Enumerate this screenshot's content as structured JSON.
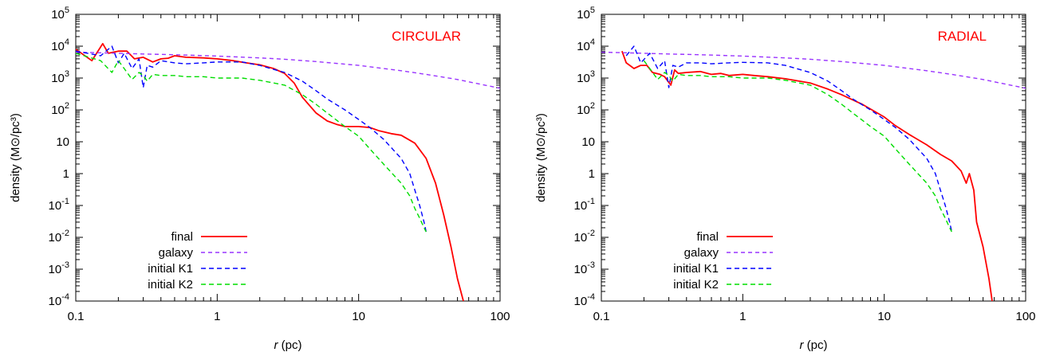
{
  "chart_data": [
    {
      "type": "line",
      "annotation": "CIRCULAR",
      "annotation_color": "#ff0000",
      "xlabel_var": "r",
      "xlabel_unit": " (pc)",
      "ylabel": "density (M⊙/pc³)",
      "xscale": "log",
      "yscale": "log",
      "xlim": [
        0.1,
        100
      ],
      "ylim": [
        0.0001,
        100000
      ],
      "xticks": [
        {
          "v": 0.1,
          "label": "0.1"
        },
        {
          "v": 1,
          "label": "1"
        },
        {
          "v": 10,
          "label": "10"
        },
        {
          "v": 100,
          "label": "100"
        }
      ],
      "yticks": [
        {
          "v": 0.0001,
          "base": "10",
          "exp": "-4"
        },
        {
          "v": 0.001,
          "base": "10",
          "exp": "-3"
        },
        {
          "v": 0.01,
          "base": "10",
          "exp": "-2"
        },
        {
          "v": 0.1,
          "base": "10",
          "exp": "-1"
        },
        {
          "v": 1,
          "base": "1",
          "exp": ""
        },
        {
          "v": 10,
          "base": "10",
          "exp": ""
        },
        {
          "v": 100,
          "base": "10",
          "exp": "2"
        },
        {
          "v": 1000,
          "base": "10",
          "exp": "3"
        },
        {
          "v": 10000,
          "base": "10",
          "exp": "4"
        },
        {
          "v": 100000,
          "base": "10",
          "exp": "5"
        }
      ],
      "legend_position": "bottom-left",
      "series": [
        {
          "name": "final",
          "color": "#ff0000",
          "dash": "solid",
          "x": [
            0.1,
            0.13,
            0.155,
            0.17,
            0.2,
            0.23,
            0.26,
            0.3,
            0.35,
            0.4,
            0.45,
            0.5,
            0.6,
            0.8,
            1.0,
            1.3,
            1.6,
            2.0,
            2.5,
            3.0,
            3.5,
            4.0,
            5.0,
            6.0,
            7.0,
            8.0,
            10.0,
            12.0,
            14.0,
            17.0,
            20.0,
            25.0,
            30.0,
            35.0,
            40.0,
            45.0,
            50.0,
            55.0
          ],
          "y": [
            8000,
            3500,
            12000,
            6000,
            7000,
            7000,
            4000,
            4500,
            3200,
            4000,
            4200,
            5000,
            4500,
            4300,
            4000,
            3500,
            3000,
            2600,
            2000,
            1400,
            700,
            250,
            80,
            45,
            35,
            30,
            30,
            28,
            22,
            18,
            16,
            9,
            3,
            0.5,
            0.05,
            0.005,
            0.0005,
            0.0001
          ]
        },
        {
          "name": "galaxy",
          "color": "#9933ff",
          "dash": "5,4",
          "x": [
            0.1,
            0.2,
            0.3,
            0.5,
            1.0,
            2.0,
            3.0,
            5.0,
            10.0,
            20.0,
            30.0,
            50.0,
            100.0
          ],
          "y": [
            6500,
            6000,
            5700,
            5400,
            4900,
            4300,
            3900,
            3300,
            2500,
            1700,
            1300,
            900,
            480
          ]
        },
        {
          "name": "initial K1",
          "color": "#0000ff",
          "dash": "6,4",
          "x": [
            0.1,
            0.15,
            0.18,
            0.2,
            0.22,
            0.25,
            0.28,
            0.3,
            0.32,
            0.35,
            0.4,
            0.5,
            0.6,
            0.8,
            1.0,
            1.5,
            2.0,
            3.0,
            4.0,
            5.0,
            6.0,
            8.0,
            10.0,
            12.0,
            15.0,
            20.0,
            23.0,
            25.0,
            27.0,
            29.0,
            30.0
          ],
          "y": [
            7000,
            5000,
            10000,
            3000,
            6000,
            2000,
            4000,
            500,
            2500,
            2200,
            3500,
            3000,
            2800,
            3000,
            3200,
            3200,
            2500,
            1500,
            800,
            400,
            220,
            100,
            50,
            28,
            12,
            3,
            1,
            0.3,
            0.1,
            0.03,
            0.015
          ]
        },
        {
          "name": "initial K2",
          "color": "#00dd00",
          "dash": "6,4",
          "x": [
            0.1,
            0.15,
            0.18,
            0.2,
            0.22,
            0.25,
            0.28,
            0.3,
            0.32,
            0.35,
            0.4,
            0.5,
            0.6,
            0.8,
            1.0,
            1.5,
            2.0,
            3.0,
            4.0,
            5.0,
            6.0,
            8.0,
            10.0,
            12.0,
            15.0,
            20.0,
            23.0,
            25.0,
            27.0,
            29.0,
            30.0
          ],
          "y": [
            6000,
            3500,
            1500,
            3500,
            2000,
            900,
            1500,
            1200,
            800,
            1300,
            1200,
            1200,
            1100,
            1100,
            1000,
            1000,
            850,
            600,
            300,
            150,
            80,
            30,
            15,
            6,
            2,
            0.5,
            0.2,
            0.08,
            0.04,
            0.02,
            0.015
          ]
        }
      ]
    },
    {
      "type": "line",
      "annotation": "RADIAL",
      "annotation_color": "#ff0000",
      "xlabel_var": "r",
      "xlabel_unit": " (pc)",
      "ylabel": "density (M⊙/pc³)",
      "xscale": "log",
      "yscale": "log",
      "xlim": [
        0.1,
        100
      ],
      "ylim": [
        0.0001,
        100000
      ],
      "xticks": [
        {
          "v": 0.1,
          "label": "0.1"
        },
        {
          "v": 1,
          "label": "1"
        },
        {
          "v": 10,
          "label": "10"
        },
        {
          "v": 100,
          "label": "100"
        }
      ],
      "yticks": [
        {
          "v": 0.0001,
          "base": "10",
          "exp": "-4"
        },
        {
          "v": 0.001,
          "base": "10",
          "exp": "-3"
        },
        {
          "v": 0.01,
          "base": "10",
          "exp": "-2"
        },
        {
          "v": 0.1,
          "base": "10",
          "exp": "-1"
        },
        {
          "v": 1,
          "base": "1",
          "exp": ""
        },
        {
          "v": 10,
          "base": "10",
          "exp": ""
        },
        {
          "v": 100,
          "base": "10",
          "exp": "2"
        },
        {
          "v": 1000,
          "base": "10",
          "exp": "3"
        },
        {
          "v": 10000,
          "base": "10",
          "exp": "4"
        },
        {
          "v": 100000,
          "base": "10",
          "exp": "5"
        }
      ],
      "legend_position": "bottom-left",
      "series": [
        {
          "name": "final",
          "color": "#ff0000",
          "dash": "solid",
          "x": [
            0.14,
            0.15,
            0.17,
            0.19,
            0.21,
            0.23,
            0.26,
            0.28,
            0.31,
            0.33,
            0.35,
            0.4,
            0.5,
            0.6,
            0.7,
            0.8,
            1.0,
            1.2,
            1.5,
            2.0,
            3.0,
            4.0,
            5.0,
            7.0,
            10.0,
            12.0,
            15.0,
            20.0,
            25.0,
            30.0,
            35.0,
            38.0,
            40.0,
            43.0,
            45.0,
            50.0,
            55.0,
            58.0
          ],
          "y": [
            7000,
            3000,
            2000,
            2500,
            2500,
            1500,
            1300,
            1100,
            600,
            1800,
            1400,
            1500,
            1600,
            1300,
            1400,
            1200,
            1300,
            1200,
            1100,
            950,
            700,
            450,
            300,
            150,
            60,
            32,
            17,
            8,
            4,
            2.5,
            1.2,
            0.5,
            1.0,
            0.3,
            0.03,
            0.005,
            0.0005,
            0.0001
          ]
        },
        {
          "name": "galaxy",
          "color": "#9933ff",
          "dash": "5,4",
          "x": [
            0.1,
            0.2,
            0.3,
            0.5,
            1.0,
            2.0,
            3.0,
            5.0,
            10.0,
            20.0,
            30.0,
            50.0,
            100.0
          ],
          "y": [
            6500,
            6000,
            5700,
            5400,
            4900,
            4300,
            3900,
            3300,
            2500,
            1700,
            1300,
            900,
            480
          ]
        },
        {
          "name": "initial K1",
          "color": "#0000ff",
          "dash": "6,4",
          "x": [
            0.15,
            0.17,
            0.19,
            0.22,
            0.25,
            0.28,
            0.3,
            0.32,
            0.35,
            0.4,
            0.5,
            0.6,
            0.8,
            1.0,
            1.5,
            2.0,
            3.0,
            4.0,
            5.0,
            6.0,
            8.0,
            10.0,
            12.0,
            15.0,
            20.0,
            23.0,
            25.0,
            27.0,
            29.0,
            30.0
          ],
          "y": [
            5000,
            10000,
            3000,
            6000,
            2000,
            3500,
            500,
            2500,
            2200,
            3000,
            3000,
            2800,
            3000,
            3100,
            3000,
            2500,
            1500,
            800,
            400,
            220,
            100,
            50,
            28,
            12,
            3,
            1,
            0.3,
            0.1,
            0.03,
            0.015
          ]
        },
        {
          "name": "initial K2",
          "color": "#00dd00",
          "dash": "6,4",
          "x": [
            0.2,
            0.22,
            0.25,
            0.28,
            0.3,
            0.32,
            0.35,
            0.4,
            0.5,
            0.6,
            0.8,
            1.0,
            1.5,
            2.0,
            3.0,
            4.0,
            5.0,
            6.0,
            8.0,
            10.0,
            12.0,
            15.0,
            20.0,
            23.0,
            25.0,
            27.0,
            29.0,
            30.0
          ],
          "y": [
            3500,
            2000,
            900,
            1500,
            1200,
            800,
            1300,
            1200,
            1200,
            1100,
            1100,
            1000,
            1000,
            850,
            600,
            300,
            150,
            80,
            30,
            15,
            6,
            2,
            0.5,
            0.2,
            0.08,
            0.04,
            0.02,
            0.015
          ]
        }
      ]
    }
  ]
}
